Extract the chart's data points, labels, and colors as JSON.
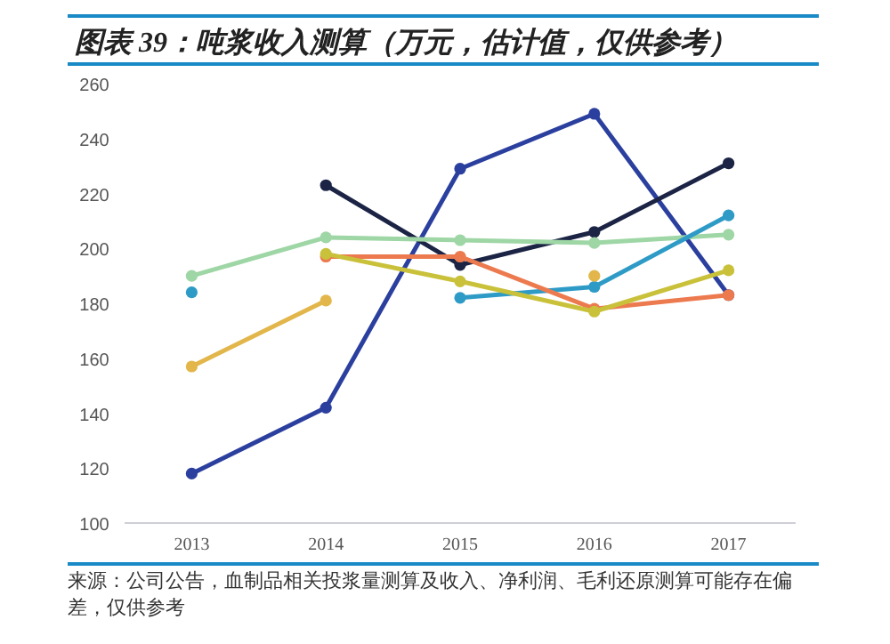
{
  "chart_data": {
    "type": "line",
    "title": "图表 39：吨浆收入测算（万元，估计值，仅供参考）",
    "annotations": [
      "来源：公司公告，血制品相关投浆量测算及收入、净利润、毛利还原测算可能存在偏差，仅供参考"
    ],
    "categories": [
      "2013",
      "2014",
      "2015",
      "2016",
      "2017"
    ],
    "series": [
      {
        "color": "#2b3f9e",
        "values": [
          118,
          142,
          229,
          249,
          183
        ]
      },
      {
        "color": "#1c2445",
        "values": [
          null,
          223,
          194,
          206,
          231
        ]
      },
      {
        "color": "#9ed6a5",
        "values": [
          190,
          204,
          203,
          202,
          205
        ]
      },
      {
        "color": "#2e9bc6",
        "values": [
          184,
          null,
          182,
          186,
          212
        ]
      },
      {
        "color": "#ec7a4e",
        "values": [
          null,
          197,
          197,
          178,
          183
        ]
      },
      {
        "color": "#c9c13a",
        "values": [
          null,
          198,
          188,
          177,
          192
        ]
      },
      {
        "color": "#e2b64a",
        "values": [
          157,
          181,
          null,
          190,
          null
        ]
      }
    ],
    "ylim": [
      100,
      260
    ],
    "yticks": [
      100,
      120,
      140,
      160,
      180,
      200,
      220,
      240,
      260
    ],
    "marker": "circle"
  }
}
